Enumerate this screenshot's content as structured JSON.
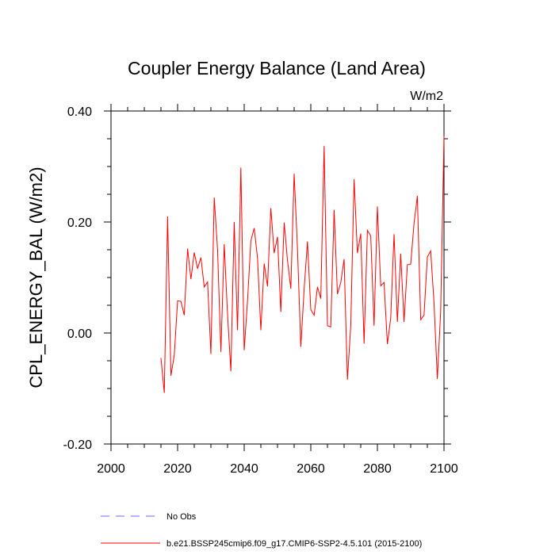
{
  "chart_data": {
    "type": "line",
    "title": "Coupler Energy Balance (Land Area)",
    "units": "W/m2",
    "xlabel": "",
    "ylabel": "CPL_ENERGY_BAL  (W/m2)",
    "xlim": [
      2000,
      2100
    ],
    "ylim": [
      -0.2,
      0.4
    ],
    "xticks": [
      2000,
      2020,
      2040,
      2060,
      2080,
      2100
    ],
    "xtick_labels": [
      "2000",
      "2020",
      "2040",
      "2060",
      "2080",
      "2100"
    ],
    "yticks": [
      -0.2,
      0.0,
      0.2,
      0.4
    ],
    "ytick_labels": [
      "-0.20",
      "0.00",
      "0.20",
      "0.40"
    ],
    "series": [
      {
        "name": "No Obs",
        "color": "#6b6bff",
        "dash": "dashed",
        "x": [],
        "y": []
      },
      {
        "name": "b.e21.BSSP245cmip6.f09_g17.CMIP6-SSP2-4.5.101 (2015-2100)",
        "color": "#ff0000",
        "dash": "solid",
        "x": [
          2015,
          2016,
          2017,
          2018,
          2019,
          2020,
          2021,
          2022,
          2023,
          2024,
          2025,
          2026,
          2027,
          2028,
          2029,
          2030,
          2031,
          2032,
          2033,
          2034,
          2035,
          2036,
          2037,
          2038,
          2039,
          2040,
          2041,
          2042,
          2043,
          2044,
          2045,
          2046,
          2047,
          2048,
          2049,
          2050,
          2051,
          2052,
          2053,
          2054,
          2055,
          2056,
          2057,
          2058,
          2059,
          2060,
          2061,
          2062,
          2063,
          2064,
          2065,
          2066,
          2067,
          2068,
          2069,
          2070,
          2071,
          2072,
          2073,
          2074,
          2075,
          2076,
          2077,
          2078,
          2079,
          2080,
          2081,
          2082,
          2083,
          2084,
          2085,
          2086,
          2087,
          2088,
          2089,
          2090,
          2091,
          2092,
          2093,
          2094,
          2095,
          2096,
          2097,
          2098,
          2099,
          2100
        ],
        "y": [
          -0.045,
          -0.108,
          0.21,
          -0.077,
          -0.04,
          0.058,
          0.057,
          0.032,
          0.152,
          0.097,
          0.145,
          0.116,
          0.136,
          0.083,
          0.092,
          -0.038,
          0.244,
          0.15,
          -0.034,
          0.16,
          0.033,
          -0.069,
          0.2,
          0.005,
          0.298,
          -0.031,
          0.058,
          0.166,
          0.189,
          0.135,
          0.005,
          0.125,
          0.084,
          0.225,
          0.144,
          0.173,
          0.038,
          0.199,
          0.131,
          0.08,
          0.287,
          0.152,
          -0.025,
          0.079,
          0.165,
          0.042,
          0.032,
          0.083,
          0.062,
          0.337,
          0.013,
          0.011,
          0.222,
          0.07,
          0.091,
          0.133,
          -0.084,
          0.013,
          0.277,
          0.144,
          0.179,
          -0.019,
          0.185,
          0.175,
          0.013,
          0.228,
          0.085,
          0.091,
          -0.02,
          0.027,
          0.178,
          0.02,
          0.143,
          0.02,
          0.123,
          0.124,
          0.197,
          0.247,
          0.024,
          0.032,
          0.137,
          0.148,
          0.055,
          -0.083,
          0.039,
          0.355
        ]
      }
    ]
  }
}
